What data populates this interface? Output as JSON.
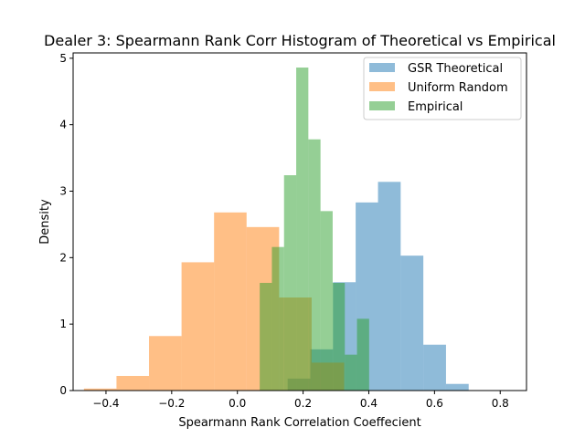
{
  "chart_data": {
    "type": "histogram",
    "title": "Dealer 3: Spearmann Rank Corr Histogram of Theoretical vs Empirical",
    "xlabel": "Spearmann Rank Correlation Coeffecient",
    "ylabel": "Density",
    "xlim": [
      -0.5,
      0.88
    ],
    "ylim": [
      0,
      5.08
    ],
    "xticks": [
      -0.4,
      -0.2,
      0.0,
      0.2,
      0.4,
      0.6,
      0.8
    ],
    "xtick_labels": [
      "−0.4",
      "−0.2",
      "0.0",
      "0.2",
      "0.4",
      "0.6",
      "0.8"
    ],
    "yticks": [
      0,
      1,
      2,
      3,
      4,
      5
    ],
    "ytick_labels": [
      "0",
      "1",
      "2",
      "3",
      "4",
      "5"
    ],
    "grid": false,
    "legend_position": "top-right",
    "alpha": 0.5,
    "series": [
      {
        "name": "GSR Theoretical",
        "color": "#1f77b4",
        "bin_edges": [
          0.153,
          0.222,
          0.291,
          0.36,
          0.428,
          0.497,
          0.566,
          0.635,
          0.704,
          0.773,
          0.842
        ],
        "densities": [
          0.18,
          0.62,
          1.63,
          2.83,
          3.14,
          2.03,
          0.69,
          0.1,
          0.0,
          0.0
        ]
      },
      {
        "name": "Uniform Random",
        "color": "#ff7f0e",
        "bin_edges": [
          -0.467,
          -0.368,
          -0.269,
          -0.17,
          -0.071,
          0.028,
          0.127,
          0.226,
          0.325
        ],
        "densities": [
          0.03,
          0.22,
          0.82,
          1.93,
          2.68,
          2.46,
          1.4,
          0.42
        ]
      },
      {
        "name": "Empirical",
        "color": "#2ca02c",
        "bin_edges": [
          0.068,
          0.105,
          0.142,
          0.179,
          0.216,
          0.253,
          0.29,
          0.327,
          0.364,
          0.401,
          0.438
        ],
        "densities": [
          1.62,
          2.16,
          3.24,
          4.86,
          3.78,
          2.7,
          1.62,
          0.54,
          1.08,
          0.0
        ]
      }
    ]
  }
}
